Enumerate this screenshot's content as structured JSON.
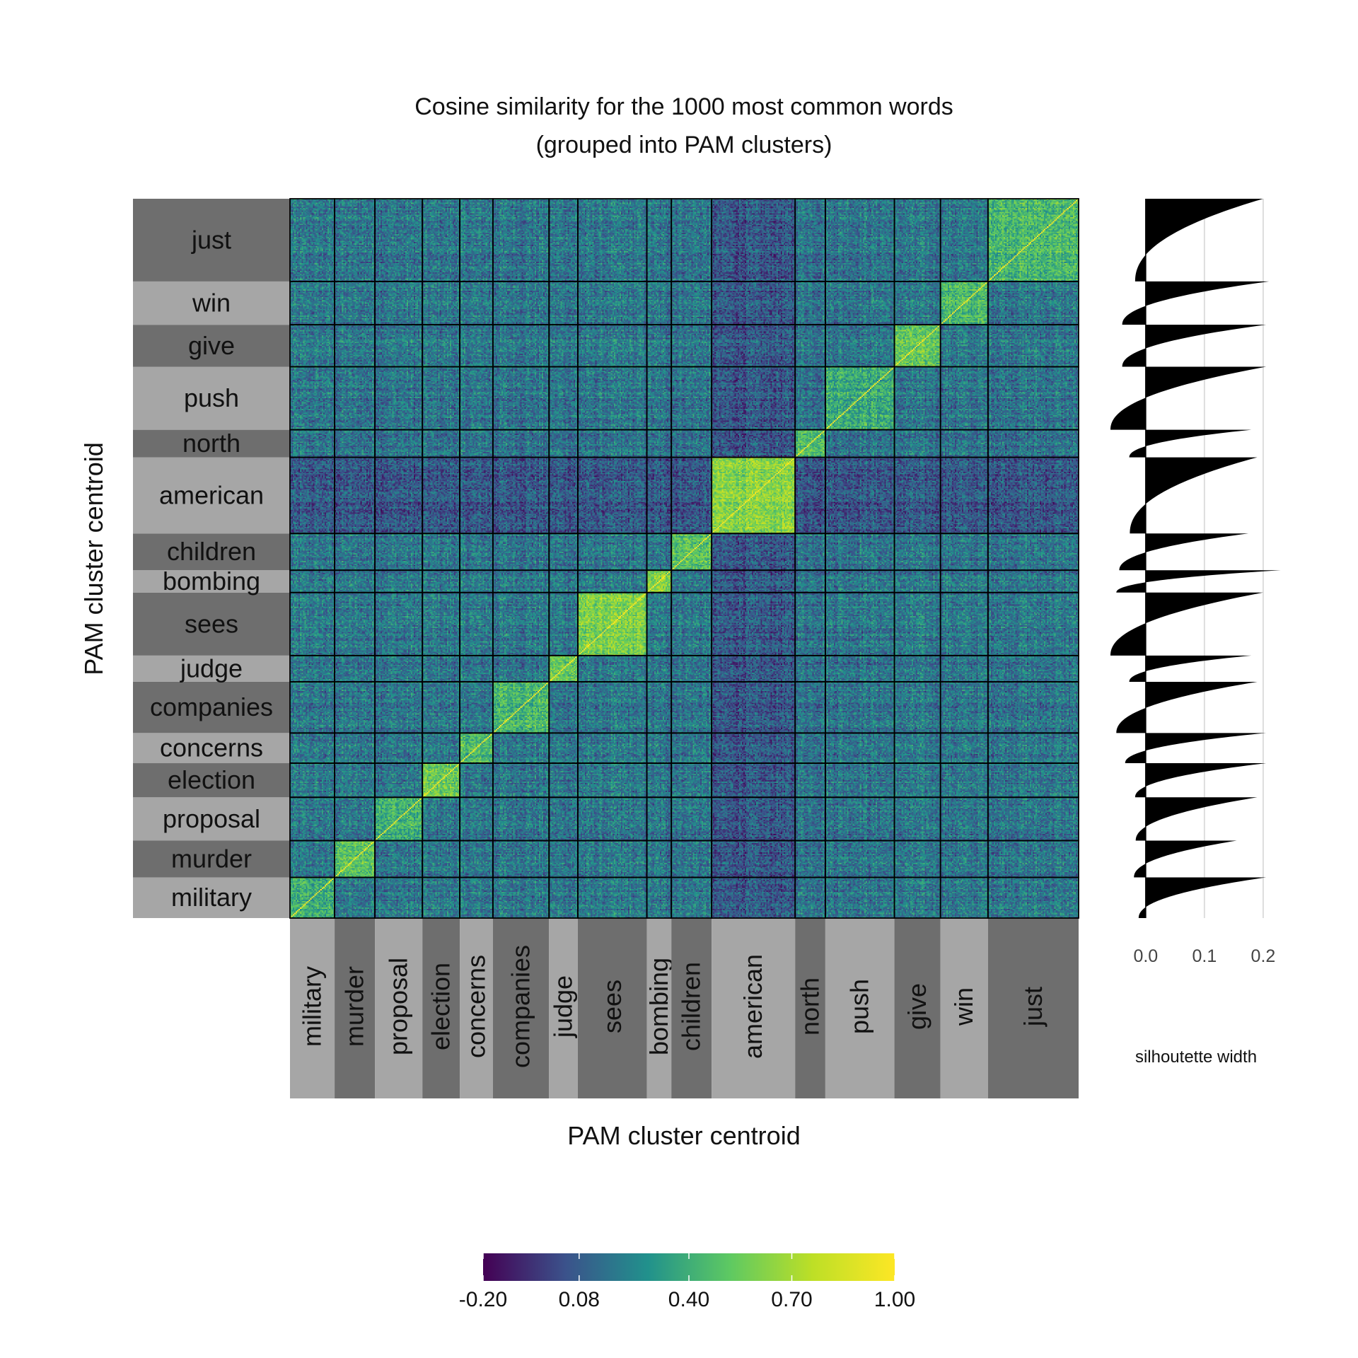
{
  "chart_data": {
    "type": "heatmap",
    "title": "Cosine similarity for the 1000 most common words",
    "subtitle": "(grouped into PAM clusters)",
    "xlabel": "PAM cluster centroid",
    "ylabel": "PAM cluster centroid",
    "clusters": [
      {
        "name": "military",
        "size": 31,
        "self_similarity": 0.38,
        "silhouette_max": 0.205,
        "silhouette_min": -0.012
      },
      {
        "name": "murder",
        "size": 28,
        "self_similarity": 0.5,
        "silhouette_max": 0.155,
        "silhouette_min": -0.02
      },
      {
        "name": "proposal",
        "size": 33,
        "self_similarity": 0.42,
        "silhouette_max": 0.19,
        "silhouette_min": -0.017
      },
      {
        "name": "election",
        "size": 26,
        "self_similarity": 0.55,
        "silhouette_max": 0.205,
        "silhouette_min": -0.018
      },
      {
        "name": "concerns",
        "size": 23,
        "self_similarity": 0.45,
        "silhouette_max": 0.205,
        "silhouette_min": -0.035
      },
      {
        "name": "companies",
        "size": 39,
        "self_similarity": 0.45,
        "silhouette_max": 0.19,
        "silhouette_min": -0.05
      },
      {
        "name": "judge",
        "size": 20,
        "self_similarity": 0.55,
        "silhouette_max": 0.18,
        "silhouette_min": -0.028
      },
      {
        "name": "sees",
        "size": 48,
        "self_similarity": 0.58,
        "silhouette_max": 0.2,
        "silhouette_min": -0.06
      },
      {
        "name": "bombing",
        "size": 17,
        "self_similarity": 0.62,
        "silhouette_max": 0.23,
        "silhouette_min": -0.05
      },
      {
        "name": "children",
        "size": 28,
        "self_similarity": 0.5,
        "silhouette_max": 0.175,
        "silhouette_min": -0.045
      },
      {
        "name": "american",
        "size": 58,
        "self_similarity": 0.62,
        "silhouette_max": 0.19,
        "silhouette_min": -0.027
      },
      {
        "name": "north",
        "size": 21,
        "self_similarity": 0.5,
        "silhouette_max": 0.18,
        "silhouette_min": -0.028
      },
      {
        "name": "push",
        "size": 48,
        "self_similarity": 0.4,
        "silhouette_max": 0.205,
        "silhouette_min": -0.06
      },
      {
        "name": "give",
        "size": 32,
        "self_similarity": 0.52,
        "silhouette_max": 0.205,
        "silhouette_min": -0.04
      },
      {
        "name": "win",
        "size": 33,
        "self_similarity": 0.45,
        "silhouette_max": 0.21,
        "silhouette_min": -0.04
      },
      {
        "name": "just",
        "size": 63,
        "self_similarity": 0.45,
        "silhouette_max": 0.2,
        "silhouette_min": -0.018
      }
    ],
    "colorbar": {
      "ticks": [
        "-0.20",
        "0.08",
        "0.40",
        "0.70",
        "1.00"
      ],
      "colors": [
        "#440154",
        "#3b528b",
        "#21918c",
        "#5ec962",
        "#bddf26",
        "#fde725"
      ]
    },
    "silhouette": {
      "xlabel": "silhoutette width",
      "ticks": [
        "0.0",
        "0.1",
        "0.2"
      ]
    },
    "grid": true,
    "band_colors": {
      "dark": "#6e6e6e",
      "light": "#a6a6a6"
    }
  }
}
